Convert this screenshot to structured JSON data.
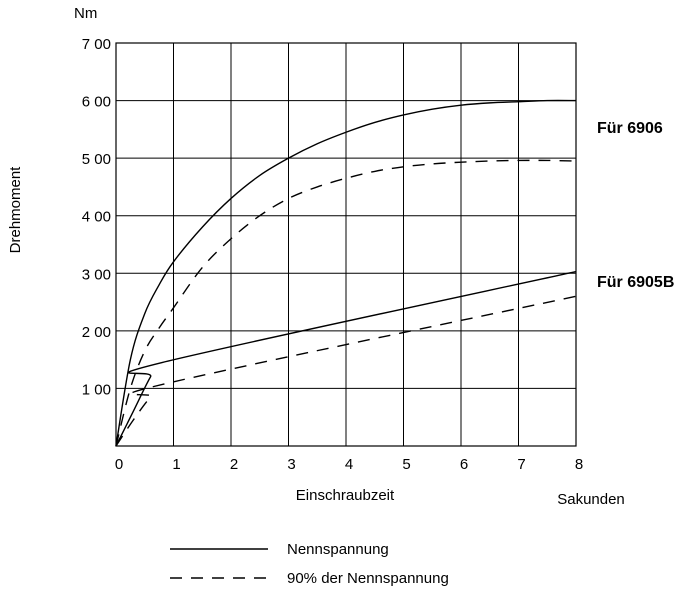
{
  "chart_data": {
    "type": "line",
    "y_unit": "Nm",
    "ylabel": "Drehmoment",
    "xlabel": "Einschraubzeit",
    "x_unit": "Sakunden",
    "xlim": [
      0,
      8
    ],
    "ylim": [
      0,
      700
    ],
    "x_ticks": [
      "0",
      "1",
      "2",
      "3",
      "4",
      "5",
      "6",
      "7",
      "8"
    ],
    "y_ticks": [
      {
        "value": 100,
        "label": "1 00"
      },
      {
        "value": 200,
        "label": "2 00"
      },
      {
        "value": 300,
        "label": "3 00"
      },
      {
        "value": 400,
        "label": "4 00"
      },
      {
        "value": 500,
        "label": "5 00"
      },
      {
        "value": 600,
        "label": "6 00"
      },
      {
        "value": 700,
        "label": "7 00"
      }
    ],
    "grid": true,
    "group_labels": [
      {
        "text": "Für 6906",
        "anchor_y": 595
      },
      {
        "text": "Für 6905B",
        "anchor_y": 295
      }
    ],
    "legend": {
      "placement": "bottom",
      "entries": [
        {
          "style": "solid",
          "label": "Nennspannung"
        },
        {
          "style": "dashed",
          "label": "90% der Nennspannung"
        }
      ]
    },
    "series": [
      {
        "style": "solid",
        "x": [
          0,
          0.25,
          0.5,
          0.75,
          1,
          1.5,
          2,
          2.5,
          3,
          3.5,
          4,
          4.5,
          5,
          5.5,
          6,
          6.5,
          7,
          7.5,
          8
        ],
        "y": [
          0,
          150,
          230,
          280,
          320,
          380,
          430,
          470,
          500,
          525,
          545,
          562,
          575,
          585,
          592,
          596,
          598,
          600,
          600
        ]
      },
      {
        "style": "dashed",
        "x": [
          0,
          0.25,
          0.5,
          0.75,
          1,
          1.5,
          2,
          2.5,
          3,
          3.5,
          4,
          4.5,
          5,
          5.5,
          6,
          6.5,
          7,
          7.5,
          8
        ],
        "y": [
          0,
          100,
          165,
          205,
          240,
          310,
          360,
          400,
          430,
          450,
          465,
          477,
          485,
          490,
          493,
          495,
          496,
          496,
          495
        ]
      },
      {
        "style": "solid",
        "x": [
          0,
          0.3,
          0.6,
          0.8,
          8
        ],
        "y": [
          0,
          60,
          120,
          145,
          303
        ]
      },
      {
        "style": "dashed",
        "x": [
          0,
          0.3,
          0.6,
          0.85,
          8
        ],
        "y": [
          0,
          45,
          85,
          108,
          260
        ]
      }
    ]
  }
}
